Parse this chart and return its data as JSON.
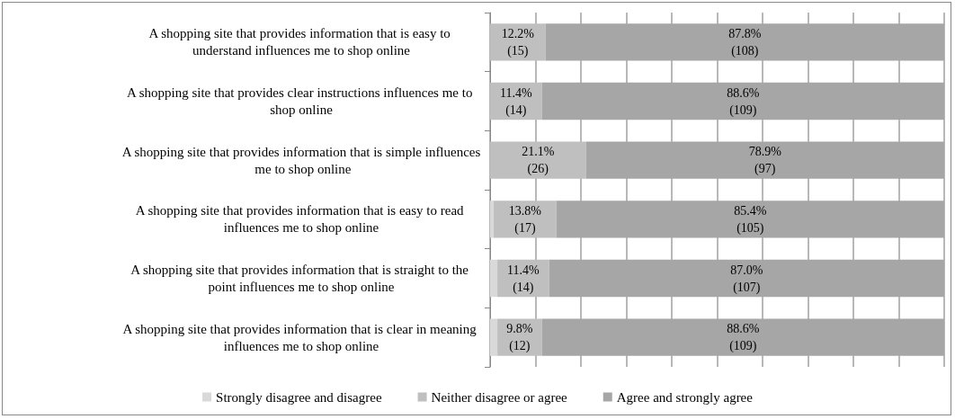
{
  "chart_data": {
    "type": "bar",
    "orientation": "horizontal",
    "stacked": true,
    "categories": [
      "A shopping site that provides information that is easy to understand influences me to shop online",
      "A shopping site that provides clear instructions influences me to shop online",
      "A shopping site that provides information that is simple influences me to shop online",
      "A shopping site that provides information that is easy to read influences me to shop online",
      "A shopping site that provides information that is straight to the point influences me to shop online",
      "A shopping site that provides information that is clear in meaning influences me to shop online"
    ],
    "series": [
      {
        "name": "Strongly disagree and disagree",
        "color": "#d9d9d9",
        "values": [
          0,
          0,
          0,
          0.8,
          1.6,
          1.6
        ]
      },
      {
        "name": "Neither disagree or agree",
        "color": "#bfbfbf",
        "values": [
          12.2,
          11.4,
          21.1,
          13.8,
          11.4,
          9.8
        ],
        "value_labels": [
          "12.2%\n(15)",
          "11.4%\n(14)",
          "21.1%\n(26)",
          "13.8%\n(17)",
          "11.4%\n(14)",
          "9.8%\n(12)"
        ]
      },
      {
        "name": "Agree and strongly agree",
        "color": "#a6a6a6",
        "values": [
          87.8,
          88.6,
          78.9,
          85.4,
          87.0,
          88.6
        ],
        "value_labels": [
          "87.8%\n(108)",
          "88.6%\n(109)",
          "78.9%\n(97)",
          "85.4%\n(105)",
          "87.0%\n(107)",
          "88.6%\n(109)"
        ]
      }
    ],
    "xlim": [
      0,
      100
    ],
    "xticks": [
      {
        "value": 0,
        "label": null
      },
      {
        "value": 10,
        "label": null
      },
      {
        "value": 20,
        "label": null
      },
      {
        "value": 30,
        "label": null
      },
      {
        "value": 40,
        "label": null
      },
      {
        "value": 50,
        "label": null
      },
      {
        "value": 60,
        "label": null
      },
      {
        "value": 70,
        "label": null
      },
      {
        "value": 80,
        "label": null
      },
      {
        "value": 90,
        "label": null
      },
      {
        "value": 100,
        "label": null
      }
    ],
    "tick_labels": "y",
    "grid": "x",
    "legend": "bottom"
  }
}
